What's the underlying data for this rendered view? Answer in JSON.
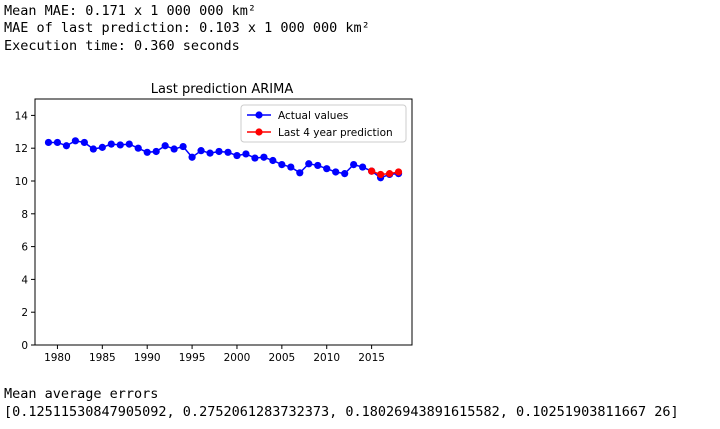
{
  "output": {
    "mean_mae": "Mean MAE: 0.171 x 1 000 000 km²",
    "last_mae": "MAE of last prediction: 0.103 x 1 000 000 km²",
    "exec_time": "Execution time: 0.360 seconds",
    "errors_label": "Mean average errors",
    "errors_values": "[0.12511530847905092, 0.2752061283732373, 0.18026943891615582, 0.10251903811667 26]"
  },
  "chart_data": {
    "type": "line",
    "title": "Last prediction ARIMA",
    "xlabel": "",
    "ylabel": "",
    "xlim": [
      1977.5,
      2019.5
    ],
    "ylim": [
      0,
      15
    ],
    "xticks": [
      1980,
      1985,
      1990,
      1995,
      2000,
      2005,
      2010,
      2015
    ],
    "yticks": [
      0,
      2,
      4,
      6,
      8,
      10,
      12,
      14
    ],
    "legend_position": "top-right",
    "grid": false,
    "series": [
      {
        "name": "Actual values",
        "color": "#0000ff",
        "x": [
          1979,
          1980,
          1981,
          1982,
          1983,
          1984,
          1985,
          1986,
          1987,
          1988,
          1989,
          1990,
          1991,
          1992,
          1993,
          1994,
          1995,
          1996,
          1997,
          1998,
          1999,
          2000,
          2001,
          2002,
          2003,
          2004,
          2005,
          2006,
          2007,
          2008,
          2009,
          2010,
          2011,
          2012,
          2013,
          2014,
          2015,
          2016,
          2017,
          2018
        ],
        "values": [
          12.35,
          12.35,
          12.15,
          12.45,
          12.35,
          11.95,
          12.05,
          12.25,
          12.2,
          12.25,
          12.0,
          11.75,
          11.8,
          12.15,
          11.95,
          12.1,
          11.45,
          11.85,
          11.7,
          11.8,
          11.75,
          11.55,
          11.65,
          11.4,
          11.45,
          11.25,
          11.0,
          10.85,
          10.5,
          11.05,
          10.95,
          10.75,
          10.55,
          10.45,
          11.0,
          10.85,
          10.6,
          10.2,
          10.4,
          10.45
        ]
      },
      {
        "name": "Last 4 year prediction",
        "color": "#ff0000",
        "x": [
          2015,
          2016,
          2017,
          2018
        ],
        "values": [
          10.6,
          10.4,
          10.45,
          10.55
        ]
      }
    ]
  }
}
